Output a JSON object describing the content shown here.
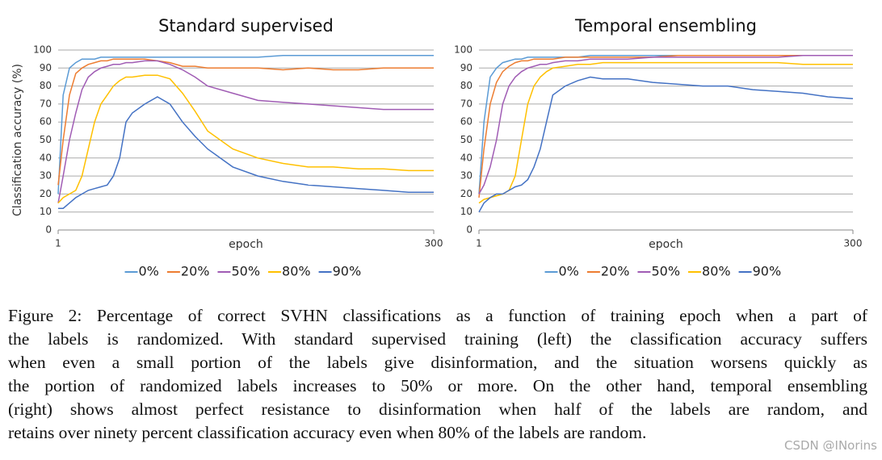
{
  "chart_data": [
    {
      "type": "line",
      "title": "Standard supervised",
      "xlabel": "epoch",
      "ylabel": "Classification accuracy (%)",
      "x": [
        1,
        5,
        10,
        15,
        20,
        25,
        30,
        35,
        40,
        45,
        50,
        55,
        60,
        70,
        80,
        90,
        100,
        110,
        120,
        140,
        160,
        180,
        200,
        220,
        240,
        260,
        280,
        300
      ],
      "xlim": [
        1,
        300
      ],
      "xticks": [
        1,
        300
      ],
      "ylim": [
        0,
        100
      ],
      "yticks": [
        0,
        10,
        20,
        30,
        40,
        50,
        60,
        70,
        80,
        90,
        100
      ],
      "grid": true,
      "legend": "bottom",
      "series": [
        {
          "name": "0%",
          "color": "#5b9bd5",
          "values": [
            20,
            75,
            90,
            93,
            95,
            95,
            95,
            96,
            96,
            96,
            96,
            96,
            96,
            96,
            96,
            96,
            96,
            96,
            96,
            96,
            96,
            97,
            97,
            97,
            97,
            97,
            97,
            97
          ]
        },
        {
          "name": "20%",
          "color": "#ed7d31",
          "values": [
            25,
            50,
            75,
            87,
            90,
            92,
            93,
            94,
            94,
            95,
            95,
            95,
            95,
            95,
            94,
            93,
            91,
            91,
            90,
            90,
            90,
            89,
            90,
            89,
            89,
            90,
            90,
            90
          ]
        },
        {
          "name": "50%",
          "color": "#a05cb4",
          "values": [
            15,
            30,
            50,
            65,
            78,
            85,
            88,
            90,
            91,
            92,
            92,
            93,
            93,
            94,
            94,
            92,
            89,
            85,
            80,
            76,
            72,
            71,
            70,
            69,
            68,
            67,
            67,
            67
          ]
        },
        {
          "name": "80%",
          "color": "#ffc000",
          "values": [
            15,
            18,
            20,
            22,
            30,
            45,
            60,
            70,
            75,
            80,
            83,
            85,
            85,
            86,
            86,
            84,
            76,
            66,
            55,
            45,
            40,
            37,
            35,
            35,
            34,
            34,
            33,
            33
          ]
        },
        {
          "name": "90%",
          "color": "#4472c4",
          "values": [
            12,
            12,
            15,
            18,
            20,
            22,
            23,
            24,
            25,
            30,
            40,
            60,
            65,
            70,
            74,
            70,
            60,
            52,
            45,
            35,
            30,
            27,
            25,
            24,
            23,
            22,
            21,
            21
          ]
        }
      ]
    },
    {
      "type": "line",
      "title": "Temporal ensembling",
      "xlabel": "epoch",
      "x": [
        1,
        5,
        10,
        15,
        20,
        25,
        30,
        35,
        40,
        45,
        50,
        55,
        60,
        70,
        80,
        90,
        100,
        110,
        120,
        140,
        160,
        180,
        200,
        220,
        240,
        260,
        280,
        300
      ],
      "xlim": [
        1,
        300
      ],
      "xticks": [
        1,
        300
      ],
      "ylim": [
        0,
        100
      ],
      "yticks": [
        0,
        10,
        20,
        30,
        40,
        50,
        60,
        70,
        80,
        90,
        100
      ],
      "grid": true,
      "legend": "bottom",
      "series": [
        {
          "name": "0%",
          "color": "#5b9bd5",
          "values": [
            20,
            60,
            85,
            90,
            93,
            94,
            95,
            95,
            96,
            96,
            96,
            96,
            96,
            96,
            96,
            97,
            97,
            97,
            97,
            97,
            97,
            97,
            97,
            97,
            97,
            97,
            97,
            97
          ]
        },
        {
          "name": "20%",
          "color": "#ed7d31",
          "values": [
            18,
            45,
            70,
            82,
            88,
            91,
            93,
            94,
            94,
            95,
            95,
            95,
            95,
            96,
            96,
            96,
            96,
            96,
            96,
            96,
            97,
            97,
            97,
            97,
            97,
            97,
            97,
            97
          ]
        },
        {
          "name": "50%",
          "color": "#a05cb4",
          "values": [
            20,
            25,
            35,
            50,
            70,
            80,
            85,
            88,
            90,
            91,
            92,
            92,
            93,
            94,
            94,
            95,
            95,
            95,
            95,
            96,
            96,
            96,
            96,
            96,
            96,
            97,
            97,
            97
          ]
        },
        {
          "name": "80%",
          "color": "#ffc000",
          "values": [
            15,
            17,
            18,
            19,
            20,
            22,
            30,
            50,
            70,
            80,
            85,
            88,
            90,
            91,
            92,
            92,
            93,
            93,
            93,
            93,
            93,
            93,
            93,
            93,
            93,
            92,
            92,
            92
          ]
        },
        {
          "name": "90%",
          "color": "#4472c4",
          "values": [
            10,
            15,
            18,
            20,
            20,
            22,
            24,
            25,
            28,
            35,
            45,
            60,
            75,
            80,
            83,
            85,
            84,
            84,
            84,
            82,
            81,
            80,
            80,
            78,
            77,
            76,
            74,
            73
          ]
        }
      ]
    }
  ],
  "caption": [
    "Figure 2: Percentage of correct SVHN classifications as a function of training epoch when a part of",
    "the labels is randomized. With standard supervised training (left) the classification accuracy suffers",
    "when even a small portion of the labels give disinformation, and the situation worsens quickly as",
    "the portion of randomized labels increases to 50% or more. On the other hand, temporal ensembling",
    "(right) shows almost perfect resistance to disinformation when half of the labels are random, and",
    "retains over ninety percent classification accuracy even when 80% of the labels are random."
  ],
  "watermark": "CSDN @INorins"
}
